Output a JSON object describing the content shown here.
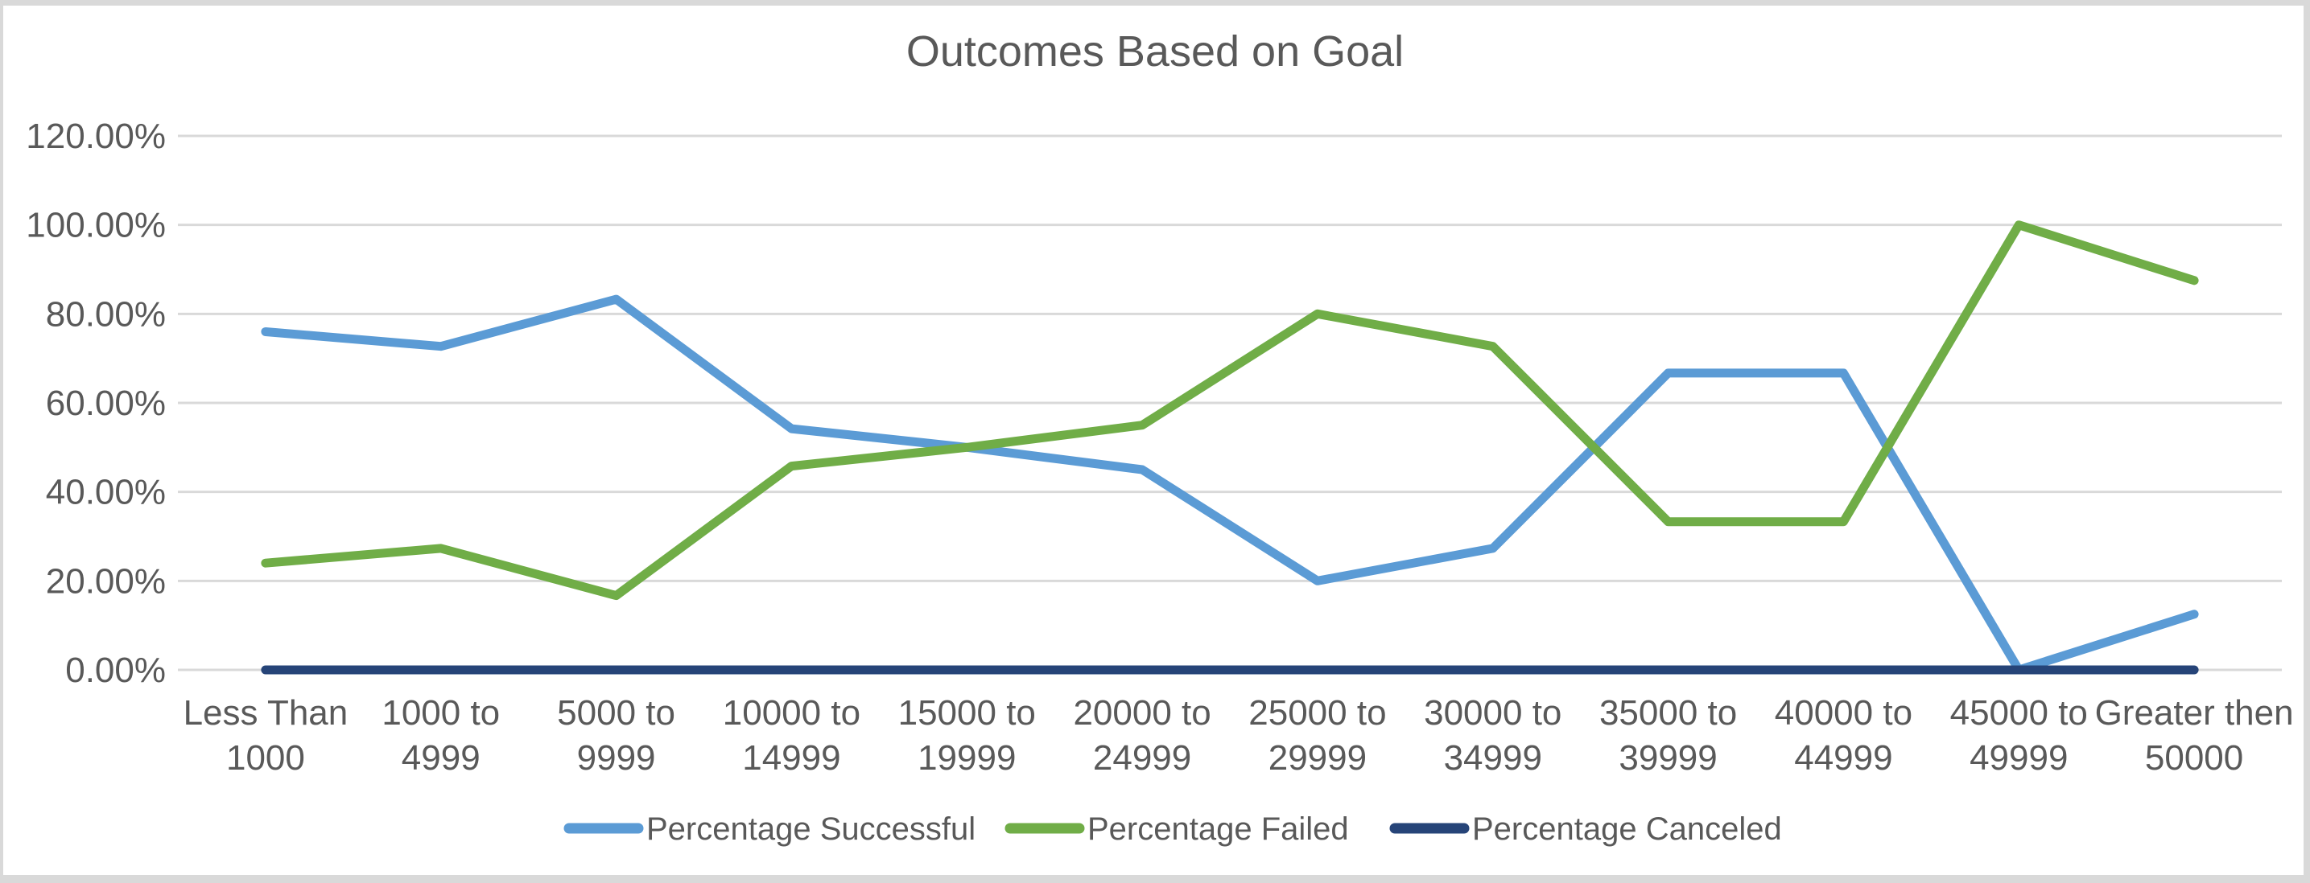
{
  "chart": {
    "background": "#FFFFFF",
    "frame_color": "#D9D9D9",
    "gridline_color": "#D9D9D9",
    "text_color": "#595959",
    "accent_blue": "#5B9BD5",
    "accent_green": "#70AD47",
    "accent_navy": "#264478"
  },
  "chart_data": {
    "type": "line",
    "title": "Outcomes Based on Goal",
    "xlabel": "",
    "ylabel": "",
    "ylim": [
      0,
      120
    ],
    "ytick_step": 20,
    "ytick_labels": [
      "0.00%",
      "20.00%",
      "40.00%",
      "60.00%",
      "80.00%",
      "100.00%",
      "120.00%"
    ],
    "grid": true,
    "legend_position": "bottom",
    "categories": [
      "Less Than 1000",
      "1000 to 4999",
      "5000 to 9999",
      "10000 to 14999",
      "15000 to 19999",
      "20000 to 24999",
      "25000 to 29999",
      "30000 to 34999",
      "35000 to 39999",
      "40000 to 44999",
      "45000 to 49999",
      "Greater then 50000"
    ],
    "series": [
      {
        "name": "Percentage Successful",
        "color": "#5B9BD5",
        "values": [
          76.0,
          72.7,
          83.3,
          54.2,
          50.0,
          45.0,
          20.0,
          27.3,
          66.7,
          66.7,
          0.0,
          12.5
        ]
      },
      {
        "name": "Percentage Failed",
        "color": "#70AD47",
        "values": [
          24.0,
          27.3,
          16.7,
          45.8,
          50.0,
          55.0,
          80.0,
          72.7,
          33.3,
          33.3,
          100.0,
          87.5
        ]
      },
      {
        "name": "Percentage Canceled",
        "color": "#264478",
        "values": [
          0.0,
          0.0,
          0.0,
          0.0,
          0.0,
          0.0,
          0.0,
          0.0,
          0.0,
          0.0,
          0.0,
          0.0
        ]
      }
    ]
  }
}
